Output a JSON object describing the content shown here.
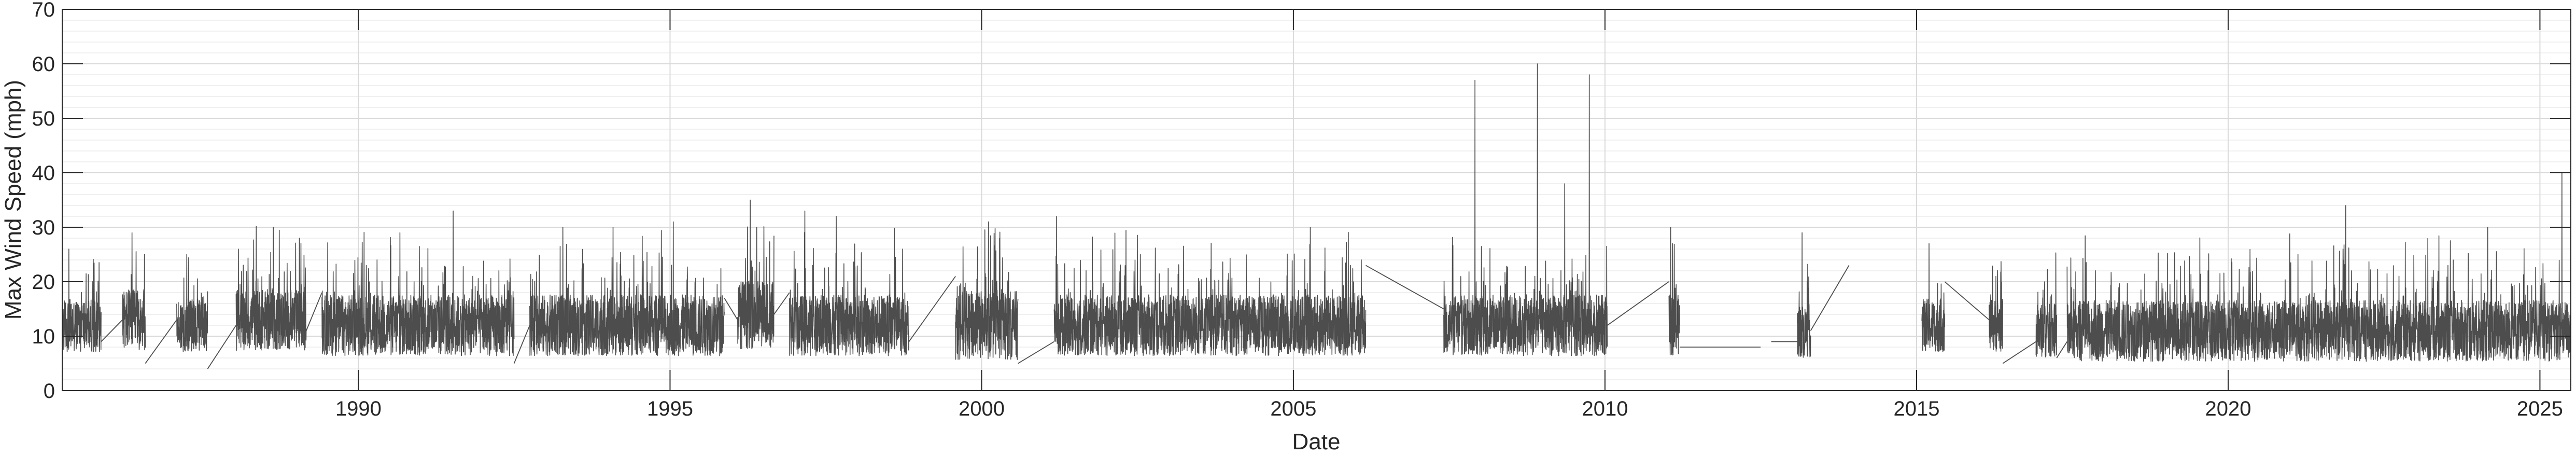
{
  "chart_data": {
    "type": "line",
    "title": "",
    "xlabel": "Date",
    "ylabel": "Max Wind Speed (mph)",
    "xlim": [
      "1985-04-01",
      "2025-07-01"
    ],
    "ylim": [
      0,
      70
    ],
    "x_ticks": [
      "1990",
      "1995",
      "2000",
      "2005",
      "2010",
      "2015",
      "2020",
      "2025"
    ],
    "y_ticks": [
      0,
      10,
      20,
      30,
      40,
      50,
      60,
      70
    ],
    "grid": true,
    "minor_grid": true,
    "legend": "none",
    "series": [
      {
        "color": "#4d4d4d",
        "segments": [
          {
            "start": "1985-04-01",
            "end": "1985-11-15",
            "base": 12,
            "amp": 7,
            "peaks": [
              [
                "1985-05-10",
                26
              ]
            ]
          },
          {
            "start": "1986-03-20",
            "end": "1986-08-01",
            "base": 13,
            "amp": 8,
            "peaks": [
              [
                "1986-05-15",
                29
              ]
            ]
          },
          {
            "start": "1987-02-01",
            "end": "1987-08-01",
            "base": 12,
            "amp": 7,
            "peaks": [
              [
                "1987-04-01",
                25
              ]
            ]
          },
          {
            "start": "1988-01-15",
            "end": "1989-03-01",
            "base": 13,
            "amp": 8,
            "peaks": [
              [
                "1988-08-20",
                30
              ],
              [
                "1989-01-20",
                28
              ]
            ]
          },
          {
            "start": "1989-06-01",
            "end": "1992-07-01",
            "base": 12,
            "amp": 8,
            "peaks": [
              [
                "1991-07-10",
                33
              ],
              [
                "1990-09-01",
                29
              ]
            ]
          },
          {
            "start": "1992-10-01",
            "end": "1995-11-15",
            "base": 12,
            "amp": 8,
            "peaks": [
              [
                "1994-02-01",
                30
              ],
              [
                "1995-01-20",
                31
              ]
            ]
          },
          {
            "start": "1996-02-01",
            "end": "1996-09-01",
            "base": 14,
            "amp": 9,
            "peaks": [
              [
                "1996-04-15",
                35
              ]
            ]
          },
          {
            "start": "1996-12-01",
            "end": "1998-11-01",
            "base": 12,
            "amp": 8,
            "peaks": [
              [
                "1997-03-01",
                33
              ],
              [
                "1997-09-01",
                32
              ]
            ]
          },
          {
            "start": "1999-08-01",
            "end": "2000-08-01",
            "base": 12,
            "amp": 9,
            "peaks": [
              [
                "2000-02-10",
                31
              ],
              [
                "2000-04-15",
                28
              ]
            ]
          },
          {
            "start": "2001-03-01",
            "end": "2006-03-01",
            "base": 12,
            "amp": 8,
            "peaks": [
              [
                "2001-03-15",
                32
              ],
              [
                "2005-04-10",
                30
              ]
            ]
          },
          {
            "start": "2007-06-01",
            "end": "2010-01-15",
            "base": 12,
            "amp": 8,
            "peaks": [
              [
                "2007-12-01",
                57
              ],
              [
                "2008-12-01",
                60
              ],
              [
                "2009-10-01",
                58
              ],
              [
                "2009-05-10",
                38
              ]
            ]
          },
          {
            "start": "2011-01-10",
            "end": "2011-03-15",
            "base": 12,
            "amp": 8,
            "peaks": [
              [
                "2011-02-01",
                27
              ]
            ]
          },
          {
            "start": "2013-02-01",
            "end": "2013-04-20",
            "base": 11,
            "amp": 7,
            "peaks": [
              [
                "2013-03-01",
                29
              ]
            ]
          },
          {
            "start": "2015-02-01",
            "end": "2015-06-15",
            "base": 12,
            "amp": 7,
            "peaks": [
              [
                "2015-03-15",
                27
              ]
            ]
          },
          {
            "start": "2016-03-01",
            "end": "2016-05-20",
            "base": 12,
            "amp": 7,
            "peaks": [
              [
                "2016-04-10",
                21
              ]
            ]
          },
          {
            "start": "2016-12-01",
            "end": "2017-04-01",
            "base": 11,
            "amp": 7,
            "peaks": [
              [
                "2017-01-20",
                20
              ]
            ]
          },
          {
            "start": "2017-06-01",
            "end": "2025-07-01",
            "base": 11,
            "amp": 8,
            "peaks": [
              [
                "2021-11-20",
                34
              ],
              [
                "2025-05-10",
                40
              ],
              [
                "2024-03-01",
                30
              ]
            ]
          }
        ],
        "bridges": [
          [
            [
              "1985-11-15",
              9
            ],
            [
              "1986-03-20",
              13
            ]
          ],
          [
            [
              "1986-08-01",
              5
            ],
            [
              "1987-02-01",
              13
            ]
          ],
          [
            [
              "1987-08-01",
              4
            ],
            [
              "1988-01-15",
              12
            ]
          ],
          [
            [
              "1989-03-01",
              11
            ],
            [
              "1989-06-01",
              18
            ]
          ],
          [
            [
              "1992-07-01",
              5
            ],
            [
              "1992-10-01",
              12
            ]
          ],
          [
            [
              "1995-11-15",
              17
            ],
            [
              "1996-02-01",
              13
            ]
          ],
          [
            [
              "1996-09-01",
              14
            ],
            [
              "1996-12-01",
              18
            ]
          ],
          [
            [
              "1998-11-01",
              9
            ],
            [
              "1999-08-01",
              21
            ]
          ],
          [
            [
              "2000-08-01",
              5
            ],
            [
              "2001-03-01",
              9
            ]
          ],
          [
            [
              "2006-03-01",
              23
            ],
            [
              "2007-06-01",
              15
            ]
          ],
          [
            [
              "2010-01-15",
              12
            ],
            [
              "2011-01-10",
              20
            ]
          ],
          [
            [
              "2011-03-15",
              8
            ],
            [
              "2012-07-01",
              8
            ]
          ],
          [
            [
              "2012-09-01",
              9
            ],
            [
              "2013-02-01",
              9
            ]
          ],
          [
            [
              "2013-04-20",
              11
            ],
            [
              "2013-12-01",
              23
            ]
          ],
          [
            [
              "2015-06-15",
              20
            ],
            [
              "2016-03-01",
              13
            ]
          ],
          [
            [
              "2016-05-20",
              5
            ],
            [
              "2016-12-01",
              9
            ]
          ],
          [
            [
              "2017-04-01",
              6
            ],
            [
              "2017-06-01",
              9
            ]
          ]
        ]
      }
    ]
  }
}
